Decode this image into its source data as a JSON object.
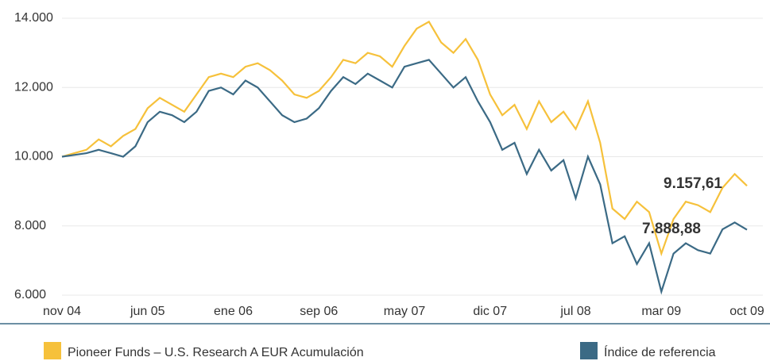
{
  "chart_data": {
    "type": "line",
    "categories": [
      "nov 04",
      null,
      null,
      null,
      null,
      null,
      null,
      "jun 05",
      null,
      null,
      null,
      null,
      null,
      null,
      "ene 06",
      null,
      null,
      null,
      null,
      null,
      null,
      "sep 06",
      null,
      null,
      null,
      null,
      null,
      null,
      "may 07",
      null,
      null,
      null,
      null,
      null,
      null,
      "dic 07",
      null,
      null,
      null,
      null,
      null,
      null,
      "jul 08",
      null,
      null,
      null,
      null,
      null,
      null,
      "mar 09",
      null,
      null,
      null,
      null,
      null,
      null,
      "oct 09"
    ],
    "series": [
      {
        "name": "Pioneer Funds – U.S. Research  A EUR Acumulación",
        "color": "#f6c13b",
        "values": [
          10000,
          10100,
          10200,
          10500,
          10300,
          10600,
          10800,
          11400,
          11700,
          11500,
          11300,
          11800,
          12300,
          12400,
          12300,
          12600,
          12700,
          12500,
          12200,
          11800,
          11700,
          11900,
          12300,
          12800,
          12700,
          13000,
          12900,
          12600,
          13200,
          13700,
          13900,
          13300,
          13000,
          13400,
          12800,
          11800,
          11200,
          11500,
          10800,
          11600,
          11000,
          11300,
          10800,
          11600,
          10400,
          8500,
          8200,
          8700,
          8400,
          7200,
          8200,
          8700,
          8600,
          8400,
          9100,
          9500,
          9157.61
        ]
      },
      {
        "name": "Índice de referencia",
        "color": "#3b6a85",
        "values": [
          10000,
          10050,
          10100,
          10200,
          10100,
          10000,
          10300,
          11000,
          11300,
          11200,
          11000,
          11300,
          11900,
          12000,
          11800,
          12200,
          12000,
          11600,
          11200,
          11000,
          11100,
          11400,
          11900,
          12300,
          12100,
          12400,
          12200,
          12000,
          12600,
          12700,
          12800,
          12400,
          12000,
          12300,
          11600,
          11000,
          10200,
          10400,
          9500,
          10200,
          9600,
          9900,
          8800,
          10000,
          9200,
          7500,
          7700,
          6900,
          7500,
          6100,
          7200,
          7500,
          7300,
          7200,
          7900,
          8100,
          7888.88
        ]
      }
    ],
    "annotations": [
      "9.157,61",
      "7.888,88"
    ],
    "ylim": [
      6000,
      14000
    ],
    "yticks": [
      {
        "value": 6000,
        "label": "6.000"
      },
      {
        "value": 8000,
        "label": "8.000"
      },
      {
        "value": 10000,
        "label": "10.000"
      },
      {
        "value": 12000,
        "label": "12.000"
      },
      {
        "value": 14000,
        "label": "14.000"
      }
    ],
    "grid": true
  }
}
